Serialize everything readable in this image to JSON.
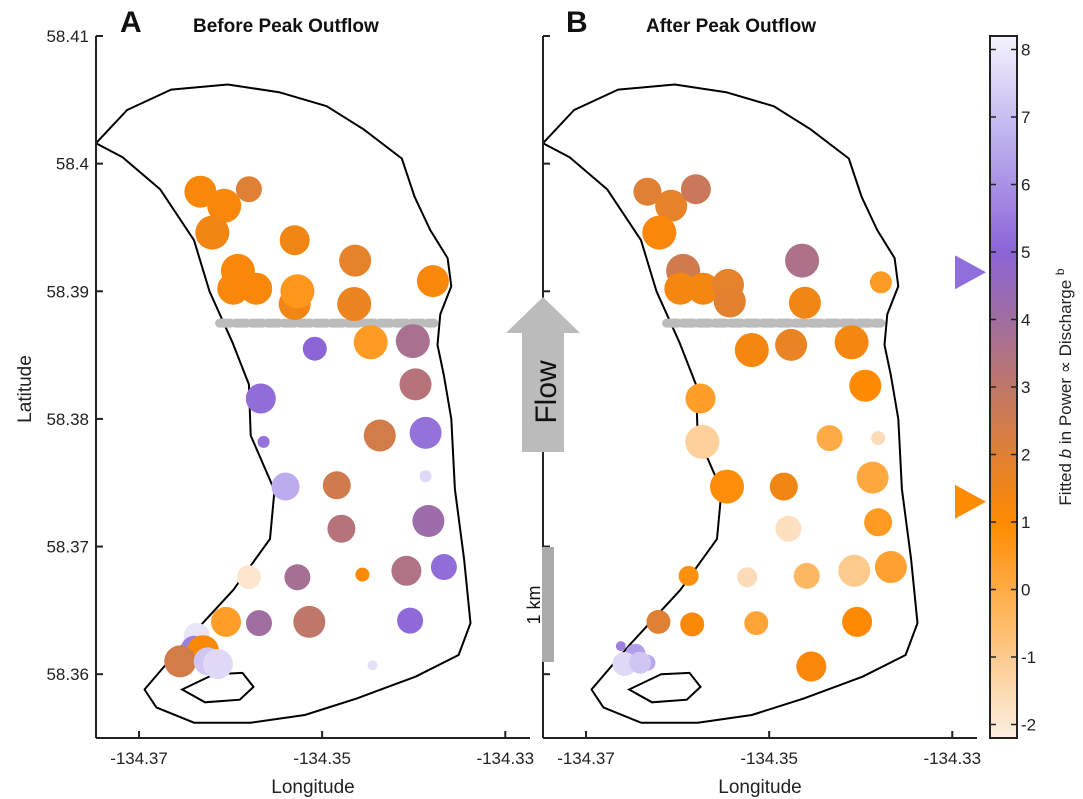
{
  "colors": {
    "outline": "#000000",
    "dash": "#bbbbbb",
    "flow_arrow": "#bbbbbb",
    "scale_bar": "#aaaaaa",
    "marker_before": "#8e6fdc",
    "marker_after": "#ff8c00",
    "colormap": [
      {
        "v": -2.2,
        "c": "#fbefe3"
      },
      {
        "v": 0.0,
        "c": "#ffab45"
      },
      {
        "v": 1.0,
        "c": "#ff8a00"
      },
      {
        "v": 2.5,
        "c": "#cf7b4e"
      },
      {
        "v": 4.0,
        "c": "#a06ea0"
      },
      {
        "v": 5.0,
        "c": "#8b64d6"
      },
      {
        "v": 6.5,
        "c": "#b8a8ec"
      },
      {
        "v": 8.2,
        "c": "#f4f2fc"
      }
    ]
  },
  "annotations": {
    "flow": "Flow",
    "scale": "1 km"
  },
  "chart_data": {
    "type": "scatter",
    "xlabel": "Longitude",
    "ylabel": "Latitude",
    "xticks": [
      "-134.37",
      "-134.35",
      "-134.33"
    ],
    "yticks": [
      "58.41",
      "58.4",
      "58.39",
      "58.38",
      "58.37",
      "58.36"
    ],
    "xlim": [
      -134.3747,
      -134.3273
    ],
    "ylim": [
      58.355,
      58.41
    ],
    "colorbar": {
      "label": "Fitted b in Power ∝ Discharge^b",
      "label_text": "Fitted",
      "label_var": "b",
      "label_rest": "in  Power  ∝  Discharge",
      "label_sup": "b",
      "range": [
        -2.2,
        8.2
      ],
      "ticks": [
        "8",
        "7",
        "6",
        "5",
        "4",
        "3",
        "2",
        "1",
        "0",
        "-1",
        "-2"
      ],
      "markers": [
        {
          "value": 4.7,
          "color": "#8e6fdc"
        },
        {
          "value": 1.3,
          "color": "#ff8c00"
        }
      ]
    },
    "outline": [
      [
        -134.3747,
        58.4016
      ],
      [
        -134.3713,
        58.4042
      ],
      [
        -134.3665,
        58.4058
      ],
      [
        -134.3603,
        58.4062
      ],
      [
        -134.3547,
        58.4056
      ],
      [
        -134.3495,
        58.4045
      ],
      [
        -134.3455,
        58.4027
      ],
      [
        -134.3413,
        58.4004
      ],
      [
        -134.3399,
        58.3974
      ],
      [
        -134.3382,
        58.3948
      ],
      [
        -134.3363,
        58.3926
      ],
      [
        -134.3359,
        58.3904
      ],
      [
        -134.3371,
        58.3882
      ],
      [
        -134.3374,
        58.3858
      ],
      [
        -134.3367,
        58.3834
      ],
      [
        -134.3359,
        58.38
      ],
      [
        -134.3355,
        58.3745
      ],
      [
        -134.3345,
        58.369
      ],
      [
        -134.3338,
        58.364
      ],
      [
        -134.3351,
        58.3615
      ],
      [
        -134.3398,
        58.3598
      ],
      [
        -134.3462,
        58.3581
      ],
      [
        -134.3519,
        58.3568
      ],
      [
        -134.3578,
        58.3562
      ],
      [
        -134.364,
        58.3562
      ],
      [
        -134.3681,
        58.3574
      ],
      [
        -134.3694,
        58.3588
      ],
      [
        -134.3651,
        58.3624
      ],
      [
        -134.3597,
        58.3666
      ],
      [
        -134.3557,
        58.3706
      ],
      [
        -134.3552,
        58.3744
      ],
      [
        -134.3578,
        58.3787
      ],
      [
        -134.358,
        58.3827
      ],
      [
        -134.3598,
        58.386
      ],
      [
        -134.3623,
        58.39
      ],
      [
        -134.364,
        58.394
      ],
      [
        -134.3677,
        58.398
      ],
      [
        -134.3718,
        58.4005
      ],
      [
        -134.3747,
        58.4016
      ]
    ],
    "inner_loop": [
      [
        -134.3653,
        58.3588
      ],
      [
        -134.3618,
        58.36
      ],
      [
        -134.3587,
        58.3601
      ],
      [
        -134.3575,
        58.359
      ],
      [
        -134.359,
        58.358
      ],
      [
        -134.3628,
        58.3578
      ],
      [
        -134.3653,
        58.3588
      ]
    ],
    "dashed_line": {
      "x": [
        -134.3612,
        -134.3378
      ],
      "lat": 58.3875
    },
    "panels": [
      {
        "letter": "A",
        "title": "Before Peak Outflow",
        "points": [
          {
            "x": -134.3633,
            "y": 58.3978,
            "b": 1.2,
            "s": 16
          },
          {
            "x": -134.3607,
            "y": 58.3967,
            "b": 1.2,
            "s": 17
          },
          {
            "x": -134.358,
            "y": 58.398,
            "b": 2.0,
            "s": 13
          },
          {
            "x": -134.362,
            "y": 58.3946,
            "b": 1.4,
            "s": 17
          },
          {
            "x": -134.353,
            "y": 58.394,
            "b": 1.4,
            "s": 15
          },
          {
            "x": -134.3464,
            "y": 58.3924,
            "b": 1.8,
            "s": 16
          },
          {
            "x": -134.3592,
            "y": 58.3916,
            "b": 1.2,
            "s": 17
          },
          {
            "x": -134.3597,
            "y": 58.3902,
            "b": 1.2,
            "s": 16
          },
          {
            "x": -134.3572,
            "y": 58.3902,
            "b": 1.2,
            "s": 16
          },
          {
            "x": -134.353,
            "y": 58.389,
            "b": 1.4,
            "s": 16
          },
          {
            "x": -134.3527,
            "y": 58.39,
            "b": 0.6,
            "s": 17
          },
          {
            "x": -134.3465,
            "y": 58.389,
            "b": 1.6,
            "s": 17
          },
          {
            "x": -134.3379,
            "y": 58.3908,
            "b": 1.2,
            "s": 16
          },
          {
            "x": -134.3508,
            "y": 58.3855,
            "b": 5.0,
            "s": 12
          },
          {
            "x": -134.3447,
            "y": 58.386,
            "b": 0.5,
            "s": 17
          },
          {
            "x": -134.3401,
            "y": 58.3861,
            "b": 3.7,
            "s": 17
          },
          {
            "x": -134.3398,
            "y": 58.3827,
            "b": 3.3,
            "s": 16
          },
          {
            "x": -134.3567,
            "y": 58.3816,
            "b": 5.2,
            "s": 15
          },
          {
            "x": -134.3437,
            "y": 58.3787,
            "b": 2.4,
            "s": 16
          },
          {
            "x": -134.3387,
            "y": 58.3789,
            "b": 5.3,
            "s": 16
          },
          {
            "x": -134.3564,
            "y": 58.3782,
            "b": 5.3,
            "s": 6
          },
          {
            "x": -134.3387,
            "y": 58.3755,
            "b": 7.6,
            "s": 6
          },
          {
            "x": -134.354,
            "y": 58.3747,
            "b": 6.6,
            "s": 14
          },
          {
            "x": -134.3484,
            "y": 58.3748,
            "b": 2.5,
            "s": 14
          },
          {
            "x": -134.3479,
            "y": 58.3714,
            "b": 3.3,
            "s": 14
          },
          {
            "x": -134.3384,
            "y": 58.372,
            "b": 4.2,
            "s": 16
          },
          {
            "x": -134.358,
            "y": 58.3676,
            "b": -1.9,
            "s": 12
          },
          {
            "x": -134.3527,
            "y": 58.3676,
            "b": 3.8,
            "s": 13
          },
          {
            "x": -134.3456,
            "y": 58.3678,
            "b": 1.1,
            "s": 7
          },
          {
            "x": -134.3408,
            "y": 58.3681,
            "b": 3.5,
            "s": 15
          },
          {
            "x": -134.3367,
            "y": 58.3684,
            "b": 5.2,
            "s": 13
          },
          {
            "x": -134.3605,
            "y": 58.3641,
            "b": 0.4,
            "s": 15
          },
          {
            "x": -134.3569,
            "y": 58.364,
            "b": 4.0,
            "s": 13
          },
          {
            "x": -134.3514,
            "y": 58.3641,
            "b": 3.0,
            "s": 16
          },
          {
            "x": -134.3404,
            "y": 58.3642,
            "b": 5.1,
            "s": 13
          },
          {
            "x": -134.3637,
            "y": 58.363,
            "b": 7.9,
            "s": 13
          },
          {
            "x": -134.364,
            "y": 58.362,
            "b": 5.6,
            "s": 13
          },
          {
            "x": -134.363,
            "y": 58.3618,
            "b": 1.1,
            "s": 16
          },
          {
            "x": -134.3655,
            "y": 58.361,
            "b": 2.4,
            "s": 16
          },
          {
            "x": -134.3625,
            "y": 58.361,
            "b": 7.2,
            "s": 14
          },
          {
            "x": -134.3614,
            "y": 58.3608,
            "b": 7.6,
            "s": 15
          },
          {
            "x": -134.3445,
            "y": 58.3607,
            "b": 7.8,
            "s": 5
          }
        ]
      },
      {
        "letter": "B",
        "title": "After Peak Outflow",
        "points": [
          {
            "x": -134.3633,
            "y": 58.3978,
            "b": 2.0,
            "s": 14
          },
          {
            "x": -134.3607,
            "y": 58.3967,
            "b": 1.8,
            "s": 16
          },
          {
            "x": -134.358,
            "y": 58.398,
            "b": 2.7,
            "s": 15
          },
          {
            "x": -134.362,
            "y": 58.3946,
            "b": 1.2,
            "s": 17
          },
          {
            "x": -134.3594,
            "y": 58.3916,
            "b": 2.5,
            "s": 17
          },
          {
            "x": -134.3597,
            "y": 58.3902,
            "b": 1.3,
            "s": 16
          },
          {
            "x": -134.3572,
            "y": 58.3902,
            "b": 1.3,
            "s": 16
          },
          {
            "x": -134.3545,
            "y": 58.3905,
            "b": 1.8,
            "s": 16
          },
          {
            "x": -134.3543,
            "y": 58.3892,
            "b": 1.9,
            "s": 16
          },
          {
            "x": -134.3464,
            "y": 58.3924,
            "b": 3.6,
            "s": 17
          },
          {
            "x": -134.3461,
            "y": 58.3891,
            "b": 1.4,
            "s": 16
          },
          {
            "x": -134.3378,
            "y": 58.3907,
            "b": 0.5,
            "s": 11
          },
          {
            "x": -134.3519,
            "y": 58.3854,
            "b": 1.3,
            "s": 17
          },
          {
            "x": -134.3476,
            "y": 58.3858,
            "b": 1.7,
            "s": 16
          },
          {
            "x": -134.341,
            "y": 58.386,
            "b": 1.3,
            "s": 17
          },
          {
            "x": -134.3395,
            "y": 58.3826,
            "b": 1.0,
            "s": 16
          },
          {
            "x": -134.3575,
            "y": 58.3816,
            "b": 0.4,
            "s": 15
          },
          {
            "x": -134.3573,
            "y": 58.3782,
            "b": -1.2,
            "s": 17
          },
          {
            "x": -134.3434,
            "y": 58.3785,
            "b": 0.0,
            "s": 13
          },
          {
            "x": -134.3381,
            "y": 58.3785,
            "b": -1.6,
            "s": 7
          },
          {
            "x": -134.3387,
            "y": 58.3754,
            "b": 0.1,
            "s": 16
          },
          {
            "x": -134.3546,
            "y": 58.3747,
            "b": 0.9,
            "s": 17
          },
          {
            "x": -134.3484,
            "y": 58.3747,
            "b": 1.4,
            "s": 14
          },
          {
            "x": -134.3381,
            "y": 58.3719,
            "b": 0.5,
            "s": 14
          },
          {
            "x": -134.3479,
            "y": 58.3714,
            "b": -1.7,
            "s": 13
          },
          {
            "x": -134.3588,
            "y": 58.3677,
            "b": 0.8,
            "s": 10
          },
          {
            "x": -134.3524,
            "y": 58.3676,
            "b": -1.6,
            "s": 10
          },
          {
            "x": -134.3459,
            "y": 58.3677,
            "b": -0.4,
            "s": 13
          },
          {
            "x": -134.3407,
            "y": 58.3681,
            "b": -1.0,
            "s": 16
          },
          {
            "x": -134.3367,
            "y": 58.3684,
            "b": 0.3,
            "s": 16
          },
          {
            "x": -134.3621,
            "y": 58.3641,
            "b": 2.0,
            "s": 12
          },
          {
            "x": -134.3584,
            "y": 58.3639,
            "b": 1.1,
            "s": 12
          },
          {
            "x": -134.3514,
            "y": 58.364,
            "b": 0.2,
            "s": 12
          },
          {
            "x": -134.3404,
            "y": 58.3641,
            "b": 1.0,
            "s": 15
          },
          {
            "x": -134.3454,
            "y": 58.3606,
            "b": 1.2,
            "s": 15
          },
          {
            "x": -134.3662,
            "y": 58.3622,
            "b": 5.6,
            "s": 5
          },
          {
            "x": -134.3646,
            "y": 58.3616,
            "b": 6.3,
            "s": 10
          },
          {
            "x": -134.3658,
            "y": 58.3608,
            "b": 7.6,
            "s": 12
          },
          {
            "x": -134.3633,
            "y": 58.3609,
            "b": 6.5,
            "s": 8
          },
          {
            "x": -134.3641,
            "y": 58.3609,
            "b": 7.2,
            "s": 11
          }
        ]
      }
    ]
  }
}
